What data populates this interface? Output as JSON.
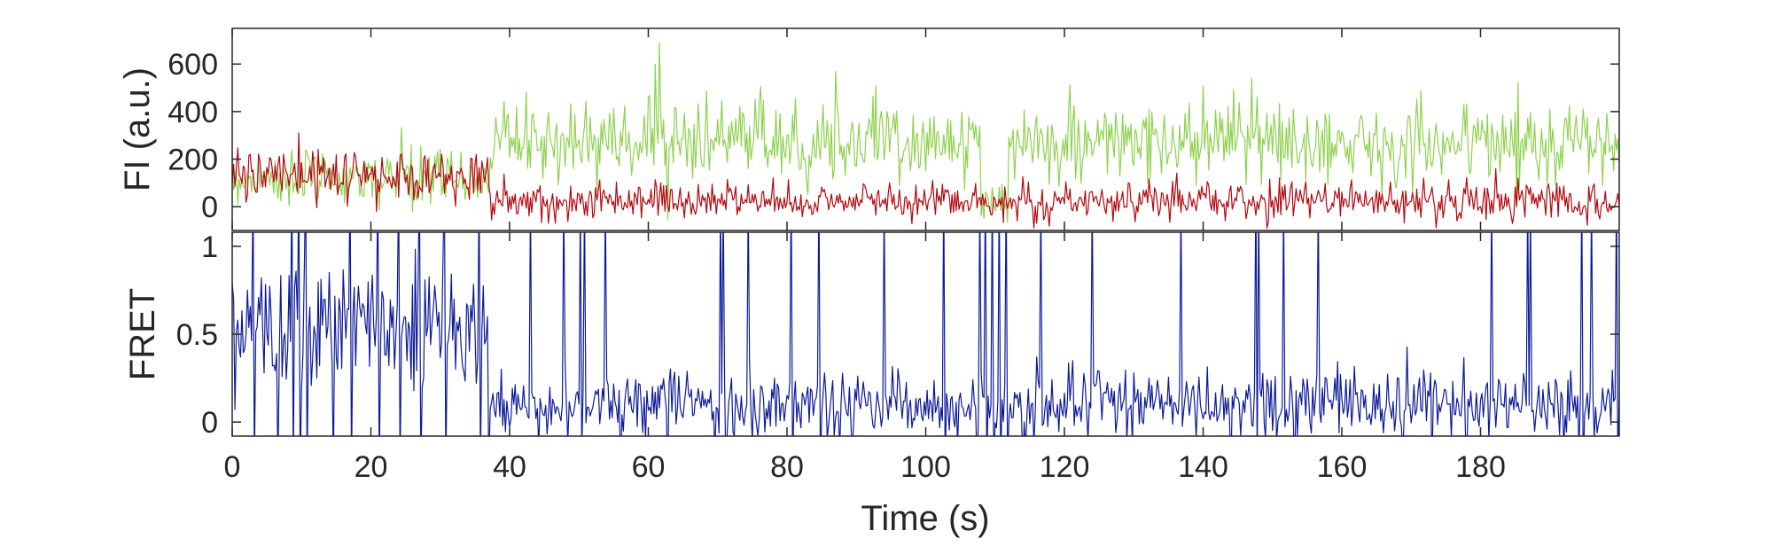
{
  "chart_data": [
    {
      "id": "intensity",
      "type": "line",
      "title": "",
      "xlabel": "",
      "ylabel": "FI (a.u.)",
      "xlim": [
        0,
        200
      ],
      "ylim": [
        -100,
        750
      ],
      "yticks": [
        0,
        200,
        400,
        600
      ],
      "ytick_labels": [
        "0",
        "200",
        "400",
        "600"
      ],
      "grid": false,
      "legend": "none",
      "sampling": {
        "dt": 0.2
      },
      "series": [
        {
          "color": "#8fd14f",
          "segments": [
            {
              "from": 0,
              "to": 37,
              "mean": 120,
              "sd": 60
            },
            {
              "from": 37,
              "to": 108,
              "mean": 280,
              "sd": 85
            },
            {
              "from": 108,
              "to": 112,
              "mean": 0,
              "sd": 45
            },
            {
              "from": 112,
              "to": 200,
              "mean": 270,
              "sd": 80
            }
          ],
          "peaks": [
            {
              "x": 61.5,
              "y": 690
            },
            {
              "x": 61,
              "y": 600
            },
            {
              "x": 87,
              "y": 570
            },
            {
              "x": 147,
              "y": 540
            }
          ]
        },
        {
          "color": "#b3080f",
          "segments": [
            {
              "from": 0,
              "to": 37,
              "mean": 130,
              "sd": 55
            },
            {
              "from": 37,
              "to": 200,
              "mean": 25,
              "sd": 40
            }
          ],
          "peaks": [
            {
              "x": 9.5,
              "y": 310
            }
          ]
        }
      ]
    },
    {
      "id": "fret",
      "type": "line",
      "title": "",
      "xlabel": "Time (s)",
      "ylabel": "FRET",
      "xlim": [
        0,
        200
      ],
      "ylim": [
        -0.08,
        1.08
      ],
      "yticks": [
        0,
        0.5,
        1
      ],
      "ytick_labels": [
        "0",
        "0.5",
        "1"
      ],
      "xticks": [
        0,
        20,
        40,
        60,
        80,
        100,
        120,
        140,
        160,
        180
      ],
      "xtick_labels": [
        "0",
        "20",
        "40",
        "60",
        "80",
        "100",
        "120",
        "140",
        "160",
        "180"
      ],
      "grid": false,
      "legend": "none",
      "sampling": {
        "dt": 0.2
      },
      "series": [
        {
          "color": "#0d1a99",
          "segments": [
            {
              "from": 0,
              "to": 37,
              "mean": 0.55,
              "sd": 0.18
            },
            {
              "from": 37,
              "to": 200,
              "mean": 0.1,
              "sd": 0.1
            }
          ],
          "spikes": [
            3,
            8.5,
            9.5,
            10.5,
            17,
            21,
            24,
            27,
            30.5,
            35.5,
            80.5,
            84.5,
            102.5,
            108.5,
            109.5,
            110.5,
            111.5,
            147.5,
            194.5,
            199.5
          ]
        }
      ]
    }
  ]
}
